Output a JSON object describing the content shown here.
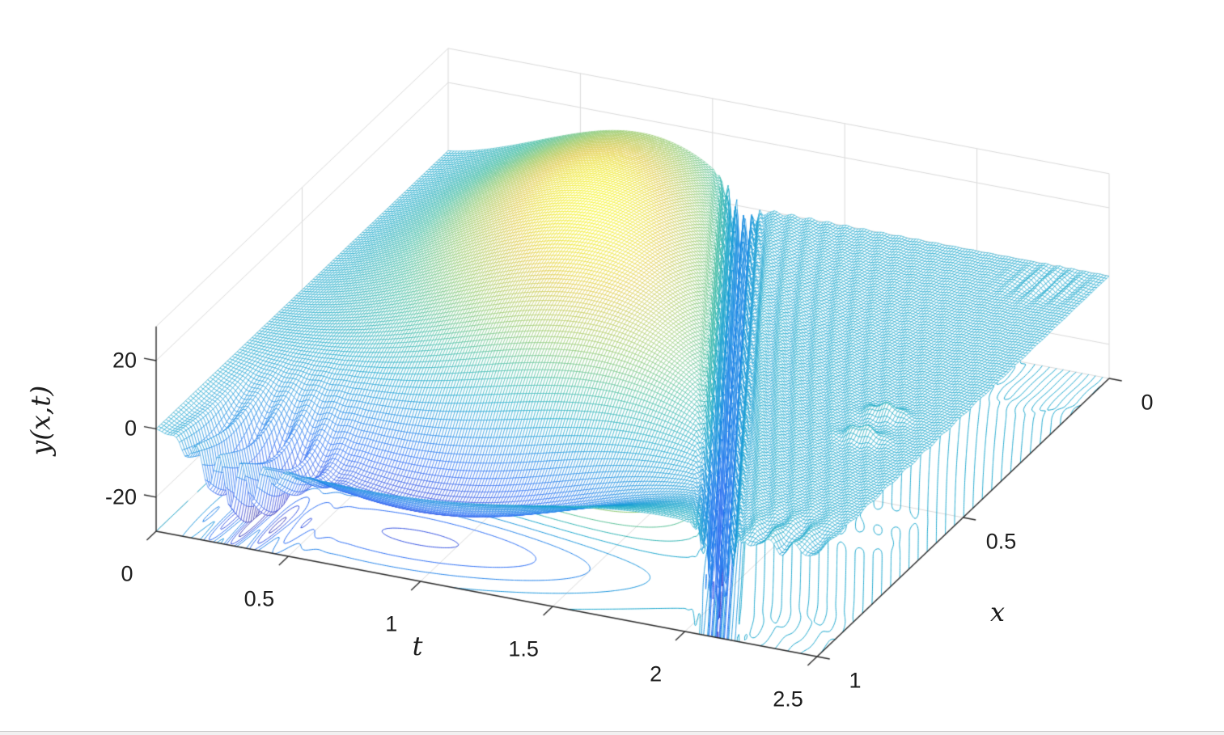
{
  "page": {
    "background": "#ffffff",
    "bottom_edge_line_color": "#c9c9c9",
    "bottom_edge_fill_color": "#f1f1f1"
  },
  "chart_data": {
    "type": "3d-mesh-surface-with-floor-contours",
    "style": "MATLAB meshc wireframe, white faces, colored edges",
    "title": "",
    "axes": {
      "t": {
        "label": "t",
        "min": 0,
        "max": 2.5,
        "ticks": [
          0,
          0.5,
          1,
          1.5,
          2,
          2.5
        ],
        "tick_labels": [
          "0",
          "0.5",
          "1",
          "1.5",
          "2",
          "2.5"
        ]
      },
      "x": {
        "label": "x",
        "min": 0,
        "max": 1,
        "ticks": [
          0,
          0.5,
          1
        ],
        "tick_labels": [
          "0",
          "0.5",
          "1"
        ]
      },
      "z": {
        "label": "y(x,t)",
        "min": -30,
        "max": 30,
        "ticks": [
          -20,
          0,
          20
        ],
        "tick_labels": [
          "-20",
          "0",
          "20"
        ]
      }
    },
    "view": {
      "projection": "orthographic",
      "azimuth_deg": -37.5,
      "elevation_deg": 30
    },
    "grid": {
      "wall_gridlines": true,
      "floor_gridlines": true,
      "gridline_color": "#d9d9d9",
      "axis_color": "#262626"
    },
    "colormap": {
      "name": "parula",
      "caxis": [
        -30,
        30
      ],
      "stops": [
        "#352a87",
        "#3642d7",
        "#246af5",
        "#158ae2",
        "#12a5c9",
        "#3dbba0",
        "#91c868",
        "#dec73e",
        "#f9fb0e"
      ]
    },
    "contour_levels": [
      -25,
      -20,
      -15,
      -10,
      -5,
      0,
      5,
      10,
      15,
      20,
      25
    ],
    "mesh_resolution": {
      "nt": 230,
      "nx": 120
    },
    "contour_resolution": {
      "nt": 540,
      "nx": 230
    },
    "description": "Solution surface y(x,t): a growing positive dome (peak about +27 near x=0.3, t=1.1), a negative valley (about -25 near x=0.86), small oscillatory wiggles near t=0.3 at x=0.94, a sharp ringing collapse trench traveling along t = 1.15 + 1.02x, and a near-zero rippled flat plane after the collapse front.",
    "surface_model": {
      "collapse_front": {
        "t0": 1.15,
        "slope": 1.02
      },
      "cutoff": {
        "p": 0.972,
        "sharpness": 0.013
      },
      "dome": {
        "amp": 29,
        "xc0": 0.28,
        "xc_drift": 0.1,
        "sig_left0": 0.34,
        "sig_left_growth": 0.16,
        "sig_right0": 0.3,
        "sig_right_growth": 0.1,
        "phase_power": 1.5,
        "shape_power": 0.9
      },
      "valley": {
        "amp": -26,
        "x_center": 0.86,
        "x_width": 0.13,
        "t_span": 2.1
      },
      "start_wiggles": {
        "amp": -11.5,
        "t_center": 0.28,
        "t_width": 0.16,
        "x_center": 0.94,
        "x_width": 0.11,
        "osc_period": 0.085,
        "osc_depth": 0.85,
        "ramp": 0.1
      },
      "shock_trench": {
        "amp_base": -17,
        "amp_x": -9.5,
        "lead": 0.045,
        "width": 0.055,
        "ring_period": 0.03,
        "ring_mix": 0.45
      },
      "aftermath": {
        "ripple": {
          "amp": 1.5,
          "decay": 0.45,
          "period": 0.068,
          "phase_wobble": 1.3,
          "phase_wobble_freq": 5.1
        },
        "spikes": {
          "amp": 3.4,
          "x_centers": [
            0.545,
            0.625
          ],
          "x_width": 0.018,
          "t_center": 2.26,
          "t_width": 0.07
        },
        "front_stripes": {
          "amp": 2.0,
          "x_center": 1.0,
          "x_width": 0.085,
          "period": 0.105,
          "t_center": 2.36,
          "t_width": 0.16
        },
        "back_ripple": {
          "amp": 0.9,
          "x_center": 0.06,
          "x_width": 0.05,
          "period": 0.05,
          "t_center": 2.33,
          "t_width": 0.12
        }
      },
      "z_clip": [
        -30,
        30
      ]
    }
  },
  "labels": {
    "t_axis": "t",
    "x_axis": "x",
    "z_axis": "y(x,t)"
  }
}
